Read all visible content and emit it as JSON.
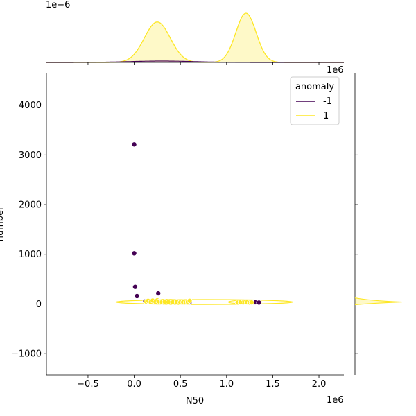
{
  "chart_data": {
    "type": "scatter",
    "subtype": "jointplot",
    "xlabel": "N50",
    "ylabel": "number",
    "x_offset_label": "1e6",
    "y_offset_label_top": "1e6",
    "marginal_x_offset_label": "1e−6",
    "xlim": [
      -0.95,
      2.27
    ],
    "ylim": [
      -1430,
      4650
    ],
    "xticks": [
      -0.5,
      0.0,
      0.5,
      1.0,
      1.5,
      2.0
    ],
    "xtick_labels": [
      "−0.5",
      "0.0",
      "0.5",
      "1.0",
      "1.5",
      "2.0"
    ],
    "yticks": [
      -1000,
      0,
      1000,
      2000,
      3000,
      4000
    ],
    "ytick_labels": [
      "−1000",
      "0",
      "1000",
      "2000",
      "3000",
      "4000"
    ],
    "legend": {
      "title": "anomaly",
      "placement": "top-right",
      "entries": [
        {
          "label": "-1",
          "color": "#440154"
        },
        {
          "label": "1",
          "color": "#fde725"
        }
      ]
    },
    "series": [
      {
        "name": "-1",
        "color": "#440154",
        "points": [
          [
            0.0,
            3210
          ],
          [
            0.0,
            1020
          ],
          [
            0.01,
            345
          ],
          [
            0.03,
            160
          ],
          [
            0.26,
            215
          ],
          [
            0.12,
            55
          ],
          [
            0.28,
            45
          ],
          [
            0.6,
            35
          ],
          [
            1.31,
            35
          ],
          [
            1.35,
            30
          ]
        ]
      },
      {
        "name": "1",
        "color": "#fde725",
        "points": [
          [
            0.13,
            50
          ],
          [
            0.15,
            65
          ],
          [
            0.18,
            40
          ],
          [
            0.2,
            70
          ],
          [
            0.23,
            45
          ],
          [
            0.25,
            75
          ],
          [
            0.27,
            50
          ],
          [
            0.3,
            40
          ],
          [
            0.33,
            45
          ],
          [
            0.37,
            40
          ],
          [
            0.42,
            38
          ],
          [
            0.46,
            40
          ],
          [
            0.5,
            35
          ],
          [
            0.53,
            38
          ],
          [
            0.56,
            35
          ],
          [
            0.58,
            42
          ],
          [
            0.6,
            65
          ],
          [
            1.12,
            30
          ],
          [
            1.15,
            35
          ],
          [
            1.18,
            32
          ],
          [
            1.2,
            38
          ],
          [
            1.22,
            35
          ],
          [
            1.25,
            30
          ],
          [
            1.27,
            33
          ]
        ]
      }
    ],
    "kde_contour": {
      "color": "#fde725",
      "x_range": [
        -0.2,
        1.72
      ],
      "y_center": 40
    },
    "marginal_x": {
      "series": [
        {
          "name": "1",
          "color": "#fde725",
          "peaks": [
            0.25,
            1.21
          ]
        },
        {
          "name": "-1",
          "color": "#440154"
        }
      ]
    },
    "marginal_y": {
      "color": "#fde725",
      "peak_y": 40
    }
  }
}
